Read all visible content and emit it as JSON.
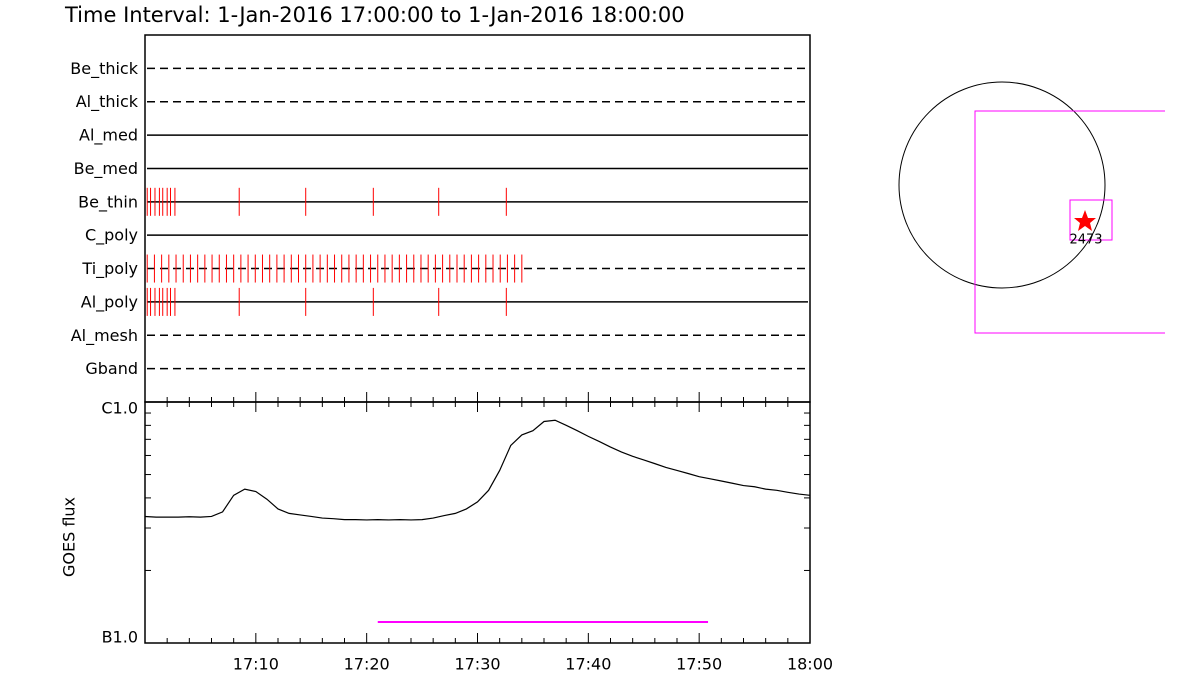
{
  "title": "Time Interval:  1-Jan-2016 17:00:00 to  1-Jan-2016 18:00:00",
  "chart_data": [
    {
      "type": "event",
      "xlim": [
        0,
        60
      ],
      "color": "#ff0000",
      "rows": [
        {
          "name": "Be_thick",
          "style": "dashed",
          "times": []
        },
        {
          "name": "Al_thick",
          "style": "dashed",
          "times": []
        },
        {
          "name": "Al_med",
          "style": "solid",
          "times": []
        },
        {
          "name": "Be_med",
          "style": "solid",
          "times": []
        },
        {
          "name": "Be_thin",
          "style": "solid",
          "times": [
            0.2,
            0.5,
            0.9,
            1.3,
            1.6,
            2.0,
            2.3,
            2.7,
            8.5,
            14.5,
            20.6,
            26.5,
            32.6
          ]
        },
        {
          "name": "C_poly",
          "style": "solid",
          "times": []
        },
        {
          "name": "Ti_poly",
          "style": "dashed",
          "times": [
            0.2,
            0.85,
            1.5,
            2.15,
            2.8,
            3.45,
            4.1,
            4.75,
            5.4,
            6.05,
            6.7,
            7.35,
            8.0,
            8.65,
            9.3,
            9.95,
            10.6,
            11.25,
            11.9,
            12.55,
            13.2,
            13.85,
            14.5,
            15.15,
            15.8,
            16.45,
            17.1,
            17.75,
            18.4,
            19.05,
            19.7,
            20.35,
            21.0,
            21.65,
            22.3,
            22.95,
            23.6,
            24.25,
            24.9,
            25.55,
            26.2,
            26.85,
            27.5,
            28.15,
            28.8,
            29.45,
            30.1,
            30.75,
            31.4,
            32.05,
            32.7,
            33.35,
            34.0
          ]
        },
        {
          "name": "Al_poly",
          "style": "solid",
          "times": [
            0.2,
            0.5,
            0.9,
            1.3,
            1.6,
            2.0,
            2.3,
            2.7,
            8.5,
            14.5,
            20.6,
            26.5,
            32.6
          ]
        },
        {
          "name": "Al_mesh",
          "style": "dashed",
          "times": []
        },
        {
          "name": "Gband",
          "style": "dashed",
          "times": []
        }
      ]
    },
    {
      "type": "line",
      "y_label": "GOES flux",
      "log_y": true,
      "color": "#000000",
      "xlim": [
        0,
        60
      ],
      "xticks": [
        {
          "value": 10,
          "label": "17:10"
        },
        {
          "value": 20,
          "label": "17:20"
        },
        {
          "value": 30,
          "label": "17:30"
        },
        {
          "value": 40,
          "label": "17:40"
        },
        {
          "value": 50,
          "label": "17:50"
        },
        {
          "value": 60,
          "label": "18:00"
        }
      ],
      "minor_xticks": [
        2,
        4,
        6,
        8,
        12,
        14,
        16,
        18,
        22,
        24,
        26,
        28,
        32,
        34,
        36,
        38,
        42,
        44,
        46,
        48,
        52,
        54,
        56,
        58
      ],
      "ylim": [
        1e-07,
        1e-06
      ],
      "yticks": [
        {
          "value": 1e-07,
          "label": "B1.0"
        },
        {
          "value": 1e-06,
          "label": "C1.0"
        }
      ],
      "minor_yticks": [
        2e-07,
        3e-07,
        4e-07,
        5e-07,
        6e-07,
        7e-07,
        8e-07,
        9e-07
      ],
      "x": [
        0,
        1,
        2,
        3,
        4,
        5,
        6,
        7,
        8,
        9,
        10,
        11,
        12,
        13,
        14,
        15,
        16,
        17,
        18,
        19,
        20,
        21,
        22,
        23,
        24,
        25,
        26,
        27,
        28,
        29,
        30,
        31,
        32,
        33,
        34,
        35,
        36,
        37,
        38,
        39,
        40,
        41,
        42,
        43,
        44,
        45,
        46,
        47,
        48,
        49,
        50,
        51,
        52,
        53,
        54,
        55,
        56,
        57,
        58,
        59,
        60
      ],
      "values": [
        3.35e-07,
        3.33e-07,
        3.33e-07,
        3.33e-07,
        3.34e-07,
        3.33e-07,
        3.35e-07,
        3.5e-07,
        4.1e-07,
        4.35e-07,
        4.25e-07,
        3.95e-07,
        3.6e-07,
        3.45e-07,
        3.4e-07,
        3.35e-07,
        3.3e-07,
        3.28e-07,
        3.25e-07,
        3.25e-07,
        3.24e-07,
        3.25e-07,
        3.24e-07,
        3.25e-07,
        3.24e-07,
        3.25e-07,
        3.3e-07,
        3.38e-07,
        3.45e-07,
        3.6e-07,
        3.85e-07,
        4.3e-07,
        5.2e-07,
        6.6e-07,
        7.3e-07,
        7.6e-07,
        8.3e-07,
        8.4e-07,
        8e-07,
        7.6e-07,
        7.2e-07,
        6.85e-07,
        6.5e-07,
        6.2e-07,
        5.95e-07,
        5.75e-07,
        5.55e-07,
        5.35e-07,
        5.2e-07,
        5.05e-07,
        4.9e-07,
        4.8e-07,
        4.7e-07,
        4.6e-07,
        4.5e-07,
        4.45e-07,
        4.35e-07,
        4.3e-07,
        4.22e-07,
        4.15e-07,
        4.1e-07
      ],
      "span": {
        "x": [
          21,
          50.8
        ],
        "color": "#ff00ff"
      }
    }
  ],
  "map": {
    "region_label": "2473"
  }
}
